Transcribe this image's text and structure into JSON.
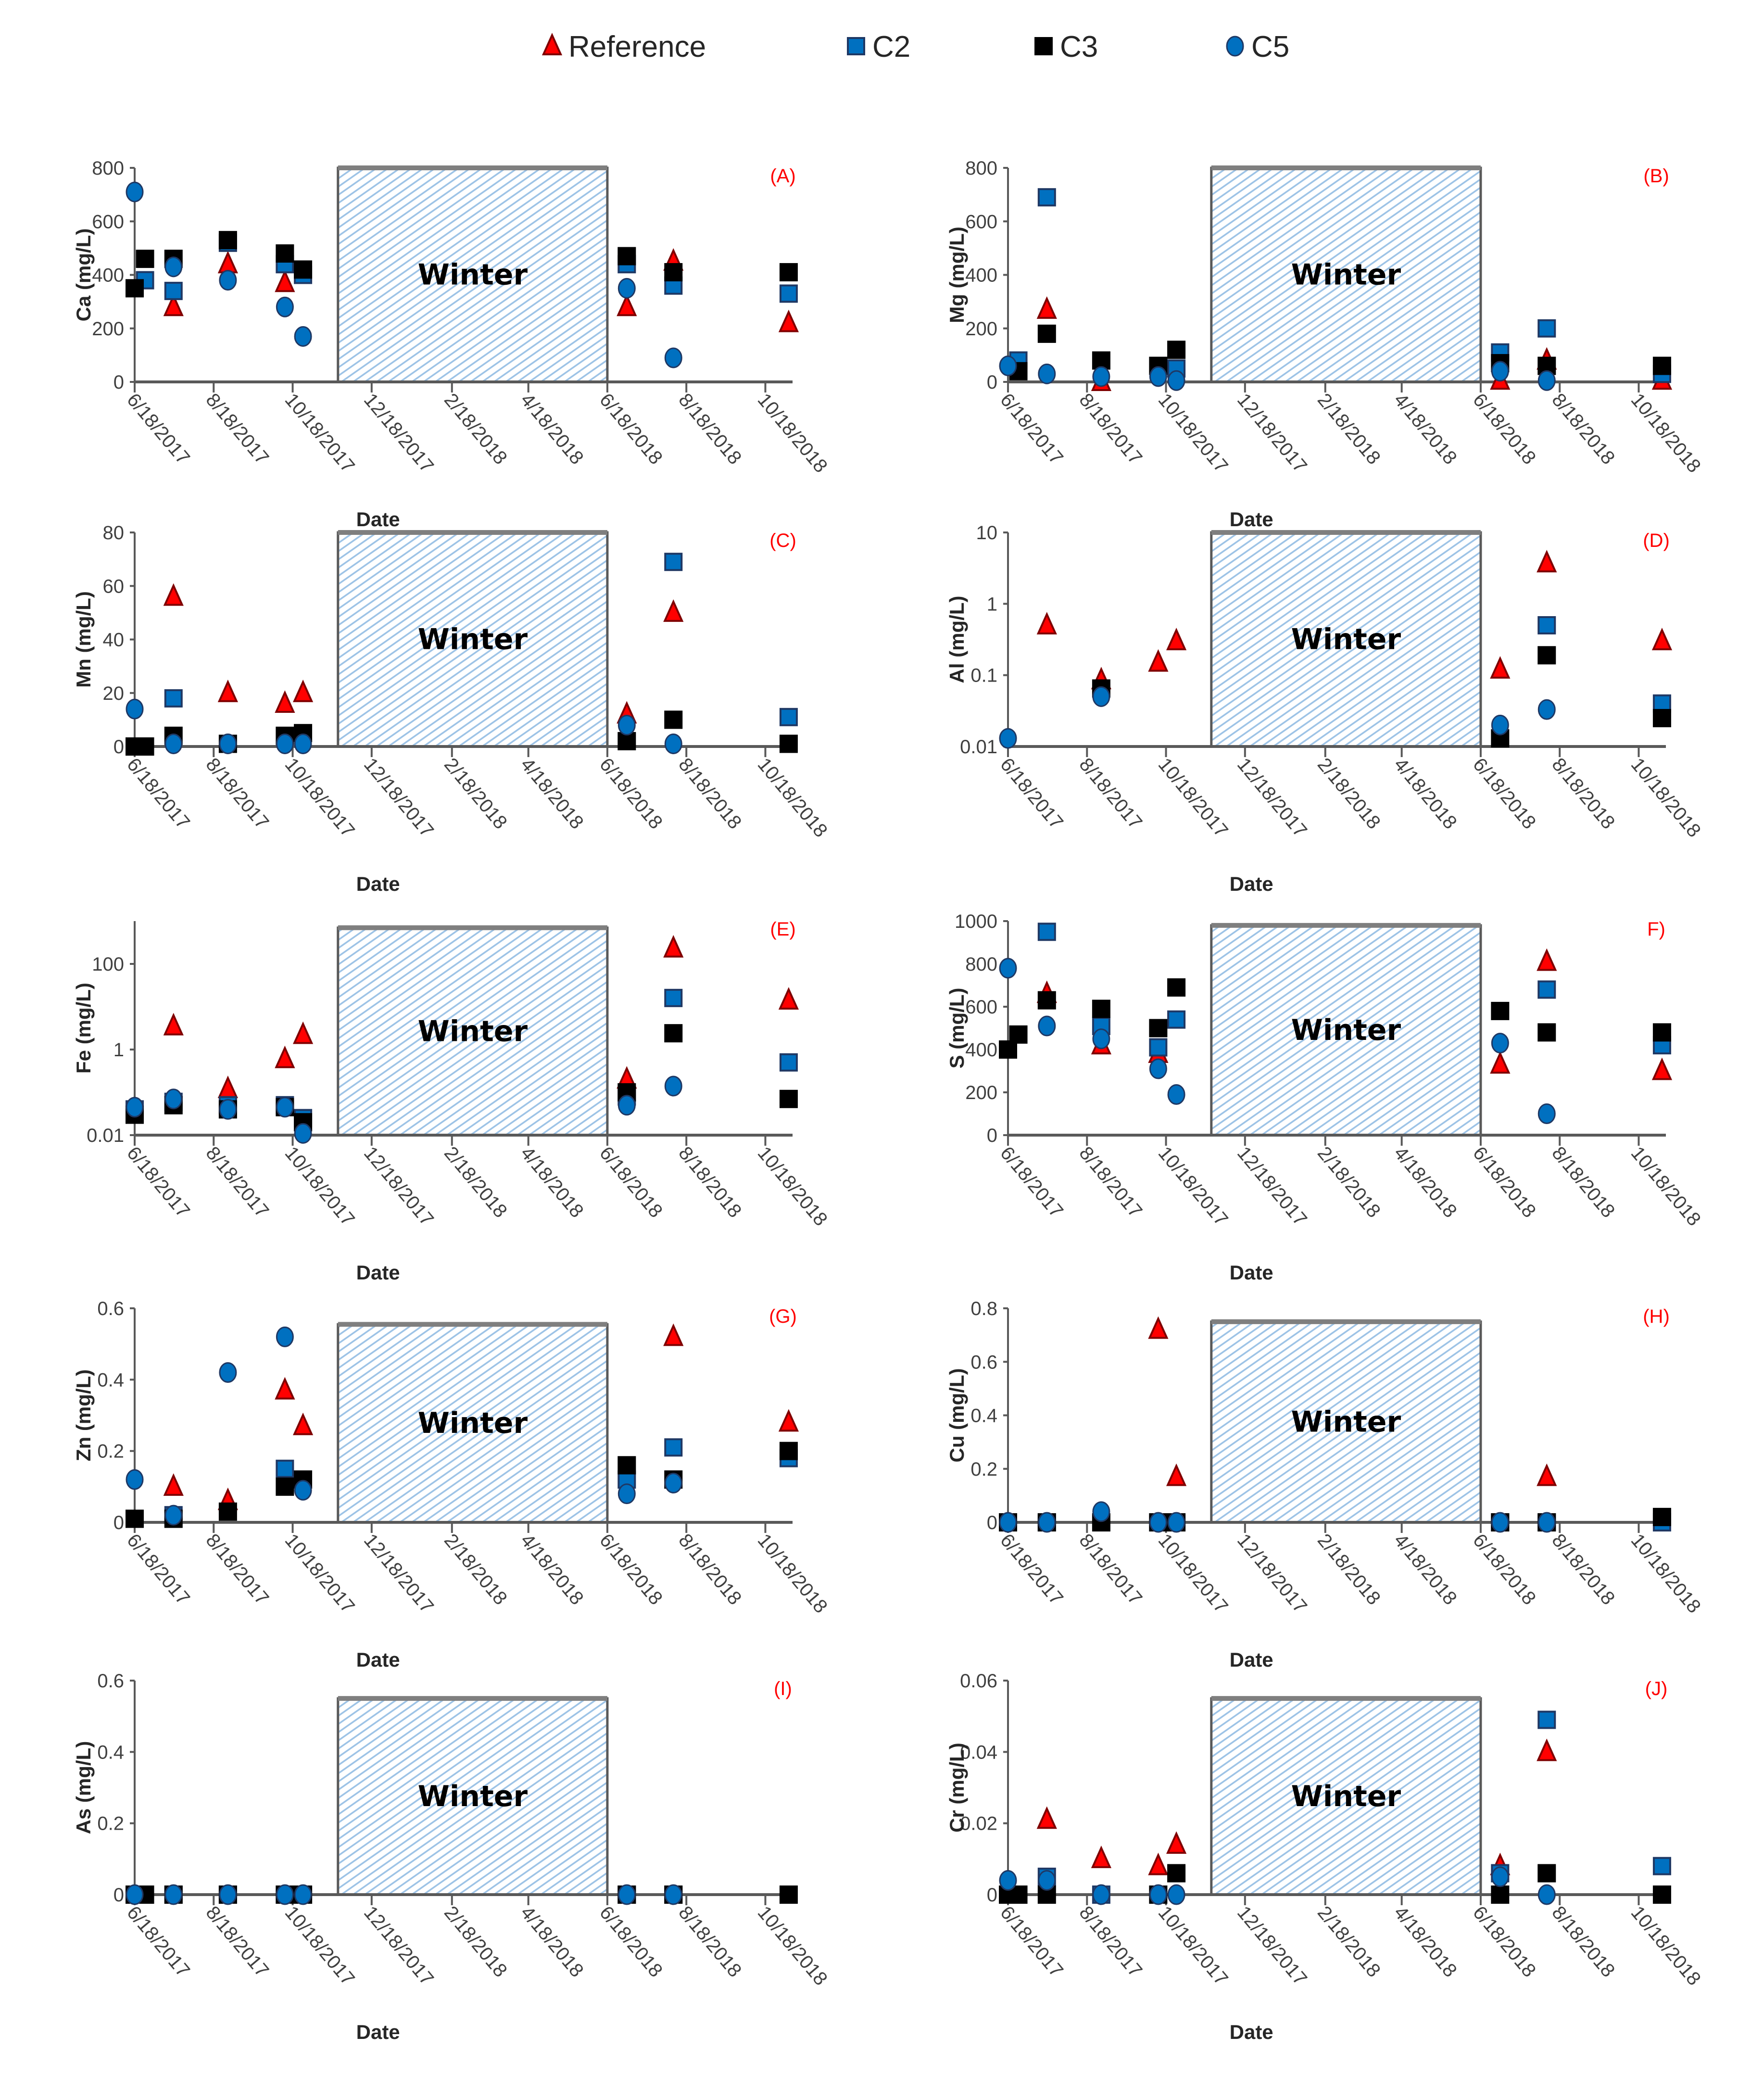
{
  "legend": [
    {
      "name": "Reference",
      "marker": "triangle",
      "color": "#FF0000",
      "stroke": "#7F0000"
    },
    {
      "name": "C2",
      "marker": "square",
      "color": "#0070C0",
      "stroke": "#1F3864"
    },
    {
      "name": "C3",
      "marker": "square",
      "color": "#000000",
      "stroke": "#000000"
    },
    {
      "name": "C5",
      "marker": "circle",
      "color": "#0070C0",
      "stroke": "#1F3864"
    }
  ],
  "winter_color": "#9DC3E6",
  "chart_data": {
    "type": "scatter",
    "xlabel": "Date",
    "x_range": [
      "2017-06-18",
      "2018-11-08"
    ],
    "x_tick_dates": [
      "2017-06-18",
      "2017-08-18",
      "2017-10-18",
      "2017-12-18",
      "2018-02-18",
      "2018-04-18",
      "2018-06-18",
      "2018-08-18",
      "2018-10-18"
    ],
    "x_tick_labels": [
      "6/18/2017",
      "8/18/2017",
      "10/18/2017",
      "12/18/2017",
      "2/18/2018",
      "4/18/2018",
      "6/18/2018",
      "8/18/2018",
      "10/18/2018"
    ],
    "sample_dates": [
      "2017-06-18",
      "2017-06-26",
      "2017-07-18",
      "2017-08-29",
      "2017-10-12",
      "2017-10-26",
      "2018-07-03",
      "2018-08-08",
      "2018-11-05"
    ],
    "winter": {
      "label": "Winter",
      "start": "2017-11-22",
      "end": "2018-06-18"
    },
    "panels": [
      {
        "id": "A",
        "label": "(A)",
        "ylabel": "Ca (mg/L)",
        "scale": "linear",
        "ylim": [
          0,
          800
        ],
        "yticks": [
          0,
          200,
          400,
          600,
          800
        ],
        "ytick_labels": [
          "0",
          "200",
          "400",
          "600",
          "800"
        ],
        "winter_top": 800,
        "series": {
          "Reference": [
            null,
            null,
            280,
            440,
            370,
            null,
            280,
            450,
            220
          ],
          "C2": [
            null,
            380,
            340,
            520,
            440,
            400,
            440,
            360,
            330
          ],
          "C3": [
            350,
            460,
            460,
            530,
            480,
            420,
            470,
            410,
            410
          ],
          "C5": [
            710,
            null,
            430,
            380,
            280,
            170,
            350,
            90,
            null
          ]
        }
      },
      {
        "id": "B",
        "label": "(B)",
        "ylabel": "Mg (mg/L)",
        "scale": "linear",
        "ylim": [
          0,
          800
        ],
        "yticks": [
          0,
          200,
          400,
          600,
          800
        ],
        "ytick_labels": [
          "0",
          "200",
          "400",
          "600",
          "800"
        ],
        "winter_top": 800,
        "series": {
          "Reference": [
            null,
            null,
            270,
            0,
            null,
            null,
            5,
            80,
            5
          ],
          "C2": [
            null,
            80,
            690,
            null,
            null,
            50,
            110,
            200,
            30
          ],
          "C3": [
            null,
            40,
            180,
            80,
            60,
            120,
            70,
            60,
            60
          ],
          "C5": [
            60,
            null,
            30,
            20,
            20,
            5,
            40,
            5,
            null
          ]
        }
      },
      {
        "id": "C",
        "label": "(C)",
        "ylabel": "Mn (mg/L)",
        "scale": "linear",
        "ylim": [
          0,
          80
        ],
        "yticks": [
          0,
          20,
          40,
          60,
          80
        ],
        "ytick_labels": [
          "0",
          "20",
          "40",
          "60",
          "80"
        ],
        "winter_top": 80,
        "series": {
          "Reference": [
            null,
            null,
            56,
            20,
            16,
            20,
            12,
            50,
            null
          ],
          "C2": [
            null,
            null,
            18,
            null,
            null,
            null,
            null,
            69,
            11
          ],
          "C3": [
            0,
            0,
            4,
            1,
            4,
            5,
            2,
            10,
            1
          ],
          "C5": [
            14,
            null,
            1,
            1,
            1,
            1,
            8,
            1,
            null
          ]
        }
      },
      {
        "id": "D",
        "label": "(D)",
        "ylabel": "Al (mg/L)",
        "scale": "log",
        "ylim": [
          0.01,
          10
        ],
        "yticks": [
          0.01,
          0.1,
          1,
          10
        ],
        "ytick_labels": [
          "0.01",
          "0.1",
          "1",
          "10"
        ],
        "winter_top": 10,
        "series": {
          "Reference": [
            null,
            null,
            0.5,
            0.085,
            0.15,
            0.3,
            0.12,
            3.7,
            0.3
          ],
          "C2": [
            null,
            null,
            null,
            null,
            null,
            null,
            null,
            0.5,
            0.04
          ],
          "C3": [
            null,
            null,
            null,
            0.065,
            null,
            null,
            0.013,
            0.19,
            0.025
          ],
          "C5": [
            0.013,
            null,
            null,
            0.05,
            null,
            null,
            0.02,
            0.033,
            null
          ]
        }
      },
      {
        "id": "E",
        "label": "(E)",
        "ylabel": "Fe (mg/L)",
        "scale": "log",
        "ylim": [
          0.01,
          1000
        ],
        "yticks": [
          0.01,
          1,
          100
        ],
        "ytick_labels": [
          "0.01",
          "1",
          "100"
        ],
        "winter_top": 700,
        "series": {
          "Reference": [
            null,
            null,
            3.5,
            0.12,
            0.6,
            2.2,
            0.2,
            230,
            14
          ],
          "C2": [
            0.04,
            null,
            0.06,
            0.05,
            0.05,
            0.025,
            0.08,
            16,
            0.5
          ],
          "C3": [
            0.03,
            null,
            0.05,
            0.04,
            0.045,
            0.02,
            0.1,
            2.4,
            0.07
          ],
          "C5": [
            0.045,
            null,
            0.07,
            0.04,
            0.045,
            0.011,
            0.05,
            0.14,
            null
          ]
        }
      },
      {
        "id": "F",
        "label": "F)",
        "ylabel": "S (mg/L)",
        "scale": "linear",
        "ylim": [
          0,
          1000
        ],
        "yticks": [
          0,
          200,
          400,
          600,
          800,
          1000
        ],
        "ytick_labels": [
          "0",
          "200",
          "400",
          "600",
          "800",
          "1000"
        ],
        "winter_top": 980,
        "series": {
          "Reference": [
            null,
            null,
            660,
            420,
            380,
            null,
            330,
            810,
            300
          ],
          "C2": [
            null,
            null,
            950,
            510,
            410,
            540,
            null,
            680,
            420
          ],
          "C3": [
            400,
            470,
            630,
            590,
            500,
            690,
            580,
            480,
            480
          ],
          "C5": [
            780,
            null,
            510,
            450,
            310,
            190,
            430,
            100,
            null
          ]
        }
      },
      {
        "id": "G",
        "label": "(G)",
        "ylabel": "Zn (mg/L)",
        "scale": "linear",
        "ylim": [
          0,
          0.6
        ],
        "yticks": [
          0,
          0.2,
          0.4,
          0.6
        ],
        "ytick_labels": [
          "0",
          "0.2",
          "0.4",
          "0.6"
        ],
        "winter_top": 0.555,
        "series": {
          "Reference": [
            null,
            null,
            0.1,
            0.06,
            0.37,
            0.27,
            null,
            0.52,
            0.28
          ],
          "C2": [
            null,
            null,
            0.02,
            null,
            0.15,
            null,
            0.12,
            0.21,
            0.18
          ],
          "C3": [
            0.01,
            null,
            0.01,
            0.03,
            0.1,
            0.12,
            0.16,
            0.12,
            0.2
          ],
          "C5": [
            0.12,
            null,
            0.02,
            0.42,
            0.52,
            0.09,
            0.08,
            0.11,
            null
          ]
        }
      },
      {
        "id": "H",
        "label": "(H)",
        "ylabel": "Cu (mg/L)",
        "scale": "linear",
        "ylim": [
          0,
          0.8
        ],
        "yticks": [
          0,
          0.2,
          0.4,
          0.6,
          0.8
        ],
        "ytick_labels": [
          "0",
          "0.2",
          "0.4",
          "0.6",
          "0.8"
        ],
        "winter_top": 0.75,
        "series": {
          "Reference": [
            null,
            null,
            null,
            null,
            0.72,
            0.17,
            null,
            0.17,
            null
          ],
          "C2": [
            0,
            null,
            0,
            null,
            0,
            0,
            0,
            0,
            0
          ],
          "C3": [
            0,
            null,
            0,
            0,
            0,
            0,
            0,
            0,
            0.02
          ],
          "C5": [
            0,
            null,
            0,
            0.04,
            0,
            0,
            0,
            0,
            null
          ]
        }
      },
      {
        "id": "I",
        "label": "(I)",
        "ylabel": "As (mg/L)",
        "scale": "linear",
        "ylim": [
          0,
          0.6
        ],
        "yticks": [
          0,
          0.2,
          0.4,
          0.6
        ],
        "ytick_labels": [
          "0",
          "0.2",
          "0.4",
          "0.6"
        ],
        "winter_top": 0.55,
        "series": {
          "Reference": [
            null,
            null,
            null,
            null,
            null,
            null,
            null,
            null,
            null
          ],
          "C2": [
            0,
            null,
            0,
            0,
            0,
            0,
            0,
            0,
            null
          ],
          "C3": [
            0,
            0,
            0,
            0,
            0,
            0,
            0,
            0,
            0
          ],
          "C5": [
            0,
            null,
            0,
            0,
            0,
            0,
            0,
            0,
            null
          ]
        }
      },
      {
        "id": "J",
        "label": "(J)",
        "ylabel": "Cr (mg/L)",
        "scale": "linear",
        "ylim": [
          0,
          0.06
        ],
        "yticks": [
          0,
          0.02,
          0.04,
          0.06
        ],
        "ytick_labels": [
          "0",
          "0.02",
          "0.04",
          "0.06"
        ],
        "winter_top": 0.055,
        "series": {
          "Reference": [
            null,
            null,
            0.021,
            0.01,
            0.008,
            0.014,
            0.008,
            0.04,
            null
          ],
          "C2": [
            null,
            null,
            0.005,
            0,
            null,
            null,
            0.006,
            0.049,
            0.008
          ],
          "C3": [
            0,
            0,
            0,
            null,
            0,
            0.006,
            0,
            0.006,
            0
          ],
          "C5": [
            0.004,
            null,
            0.004,
            0,
            0,
            0,
            0.005,
            0,
            null
          ]
        }
      }
    ]
  }
}
